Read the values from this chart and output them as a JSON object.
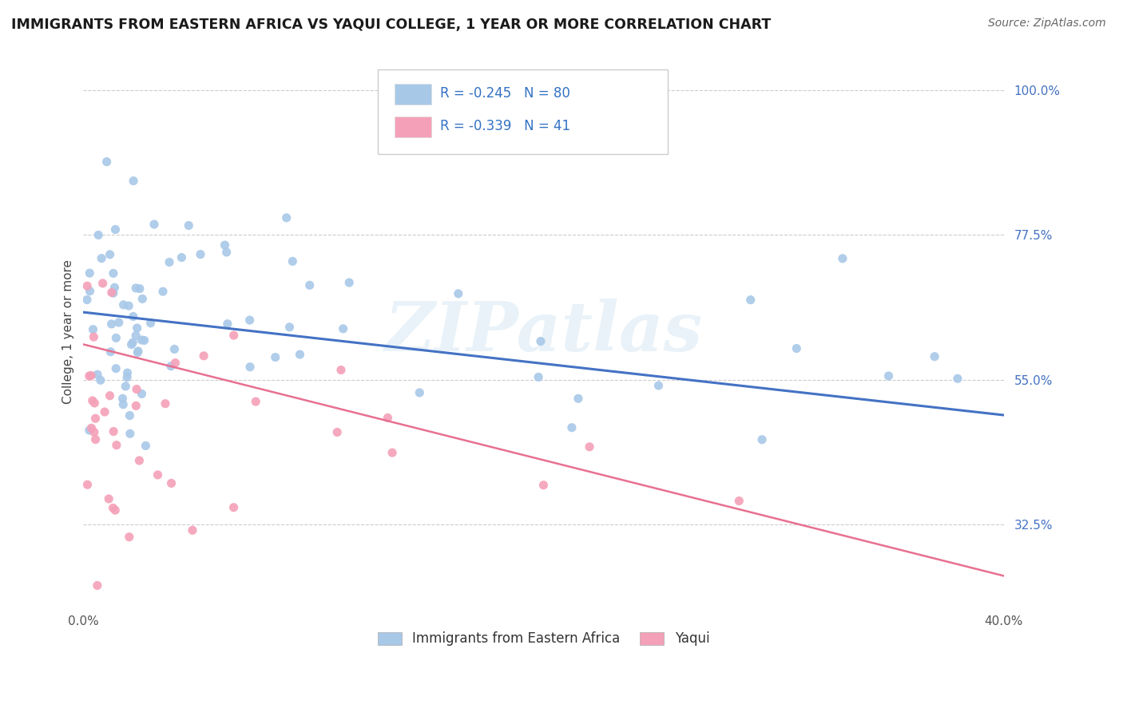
{
  "title": "IMMIGRANTS FROM EASTERN AFRICA VS YAQUI COLLEGE, 1 YEAR OR MORE CORRELATION CHART",
  "source": "Source: ZipAtlas.com",
  "ylabel": "College, 1 year or more",
  "legend_label1": "Immigrants from Eastern Africa",
  "legend_label2": "Yaqui",
  "R1": -0.245,
  "N1": 80,
  "R2": -0.339,
  "N2": 41,
  "color1": "#a8c8e8",
  "color2": "#f4a0b8",
  "line_color1": "#4472c4",
  "line_color2": "#e87090",
  "line_color2_dash": "#e898b0",
  "xlim": [
    0.0,
    0.4
  ],
  "ylim": [
    0.2,
    1.05
  ],
  "yticks_right": [
    1.0,
    0.775,
    0.55,
    0.325
  ],
  "ytick_labels_right": [
    "100.0%",
    "77.5%",
    "55.0%",
    "32.5%"
  ],
  "watermark": "ZIPatlas",
  "blue_line_x0": 0.0,
  "blue_line_y0": 0.655,
  "blue_line_x1": 0.4,
  "blue_line_y1": 0.495,
  "pink_line_x0": 0.0,
  "pink_line_y0": 0.605,
  "pink_line_x1": 0.4,
  "pink_line_y1": 0.245
}
